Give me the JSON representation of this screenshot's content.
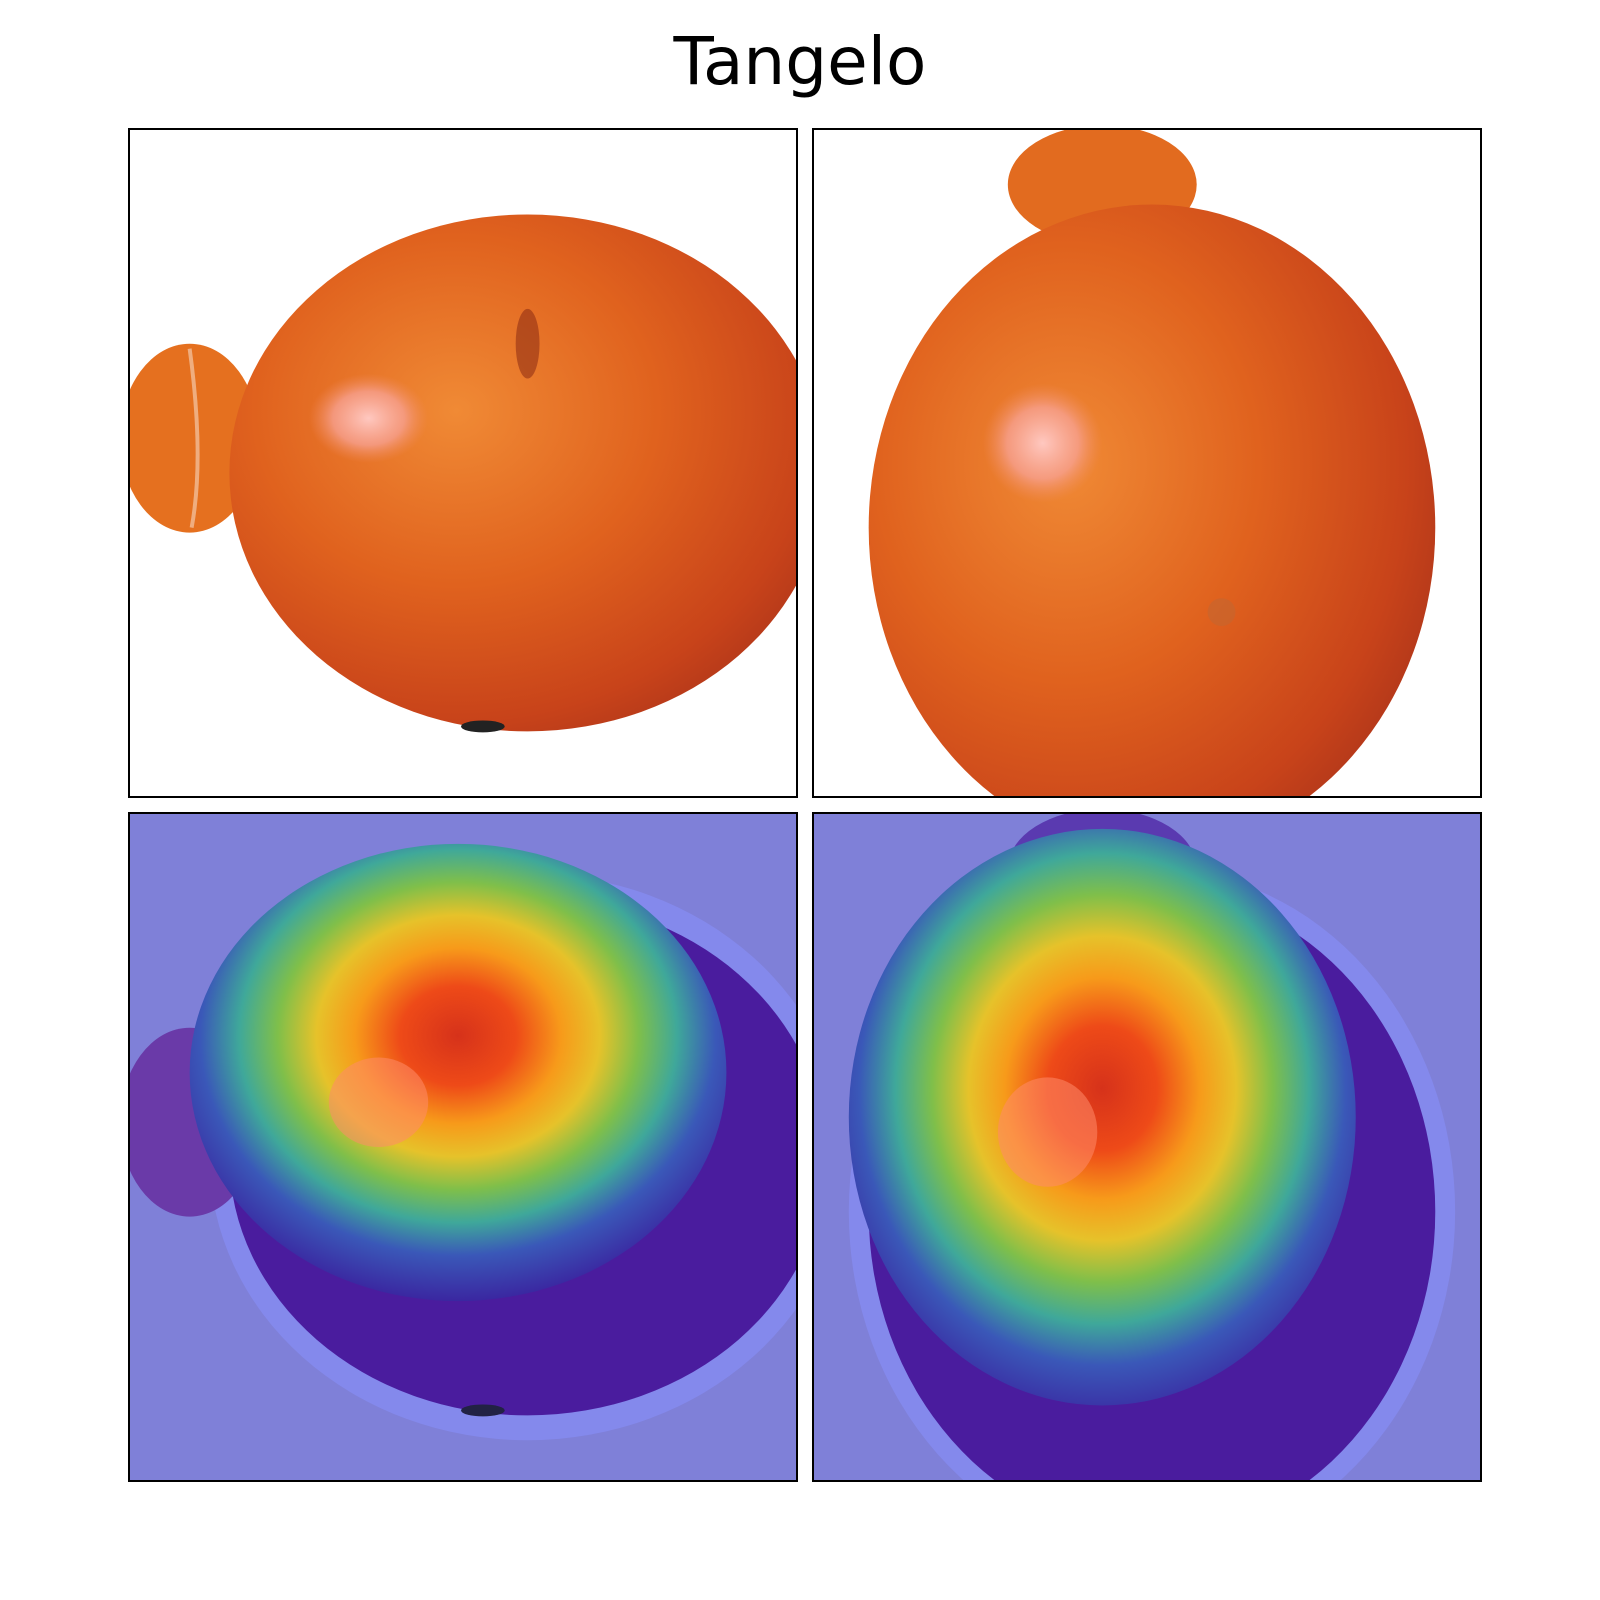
{
  "figure": {
    "title": "Tangelo"
  },
  "panels": [
    {
      "name": "original-left",
      "kind": "photo",
      "subject": "tangelo-fruit",
      "fruit_color": "#d9561c",
      "background": "#ffffff"
    },
    {
      "name": "original-right",
      "kind": "photo",
      "subject": "tangelo-fruit",
      "fruit_color": "#d9561c",
      "background": "#ffffff"
    },
    {
      "name": "heatmap-left",
      "kind": "saliency-overlay",
      "colormap": "jet",
      "background": "#7f80d8"
    },
    {
      "name": "heatmap-right",
      "kind": "saliency-overlay",
      "colormap": "jet",
      "background": "#7f80d8"
    }
  ]
}
